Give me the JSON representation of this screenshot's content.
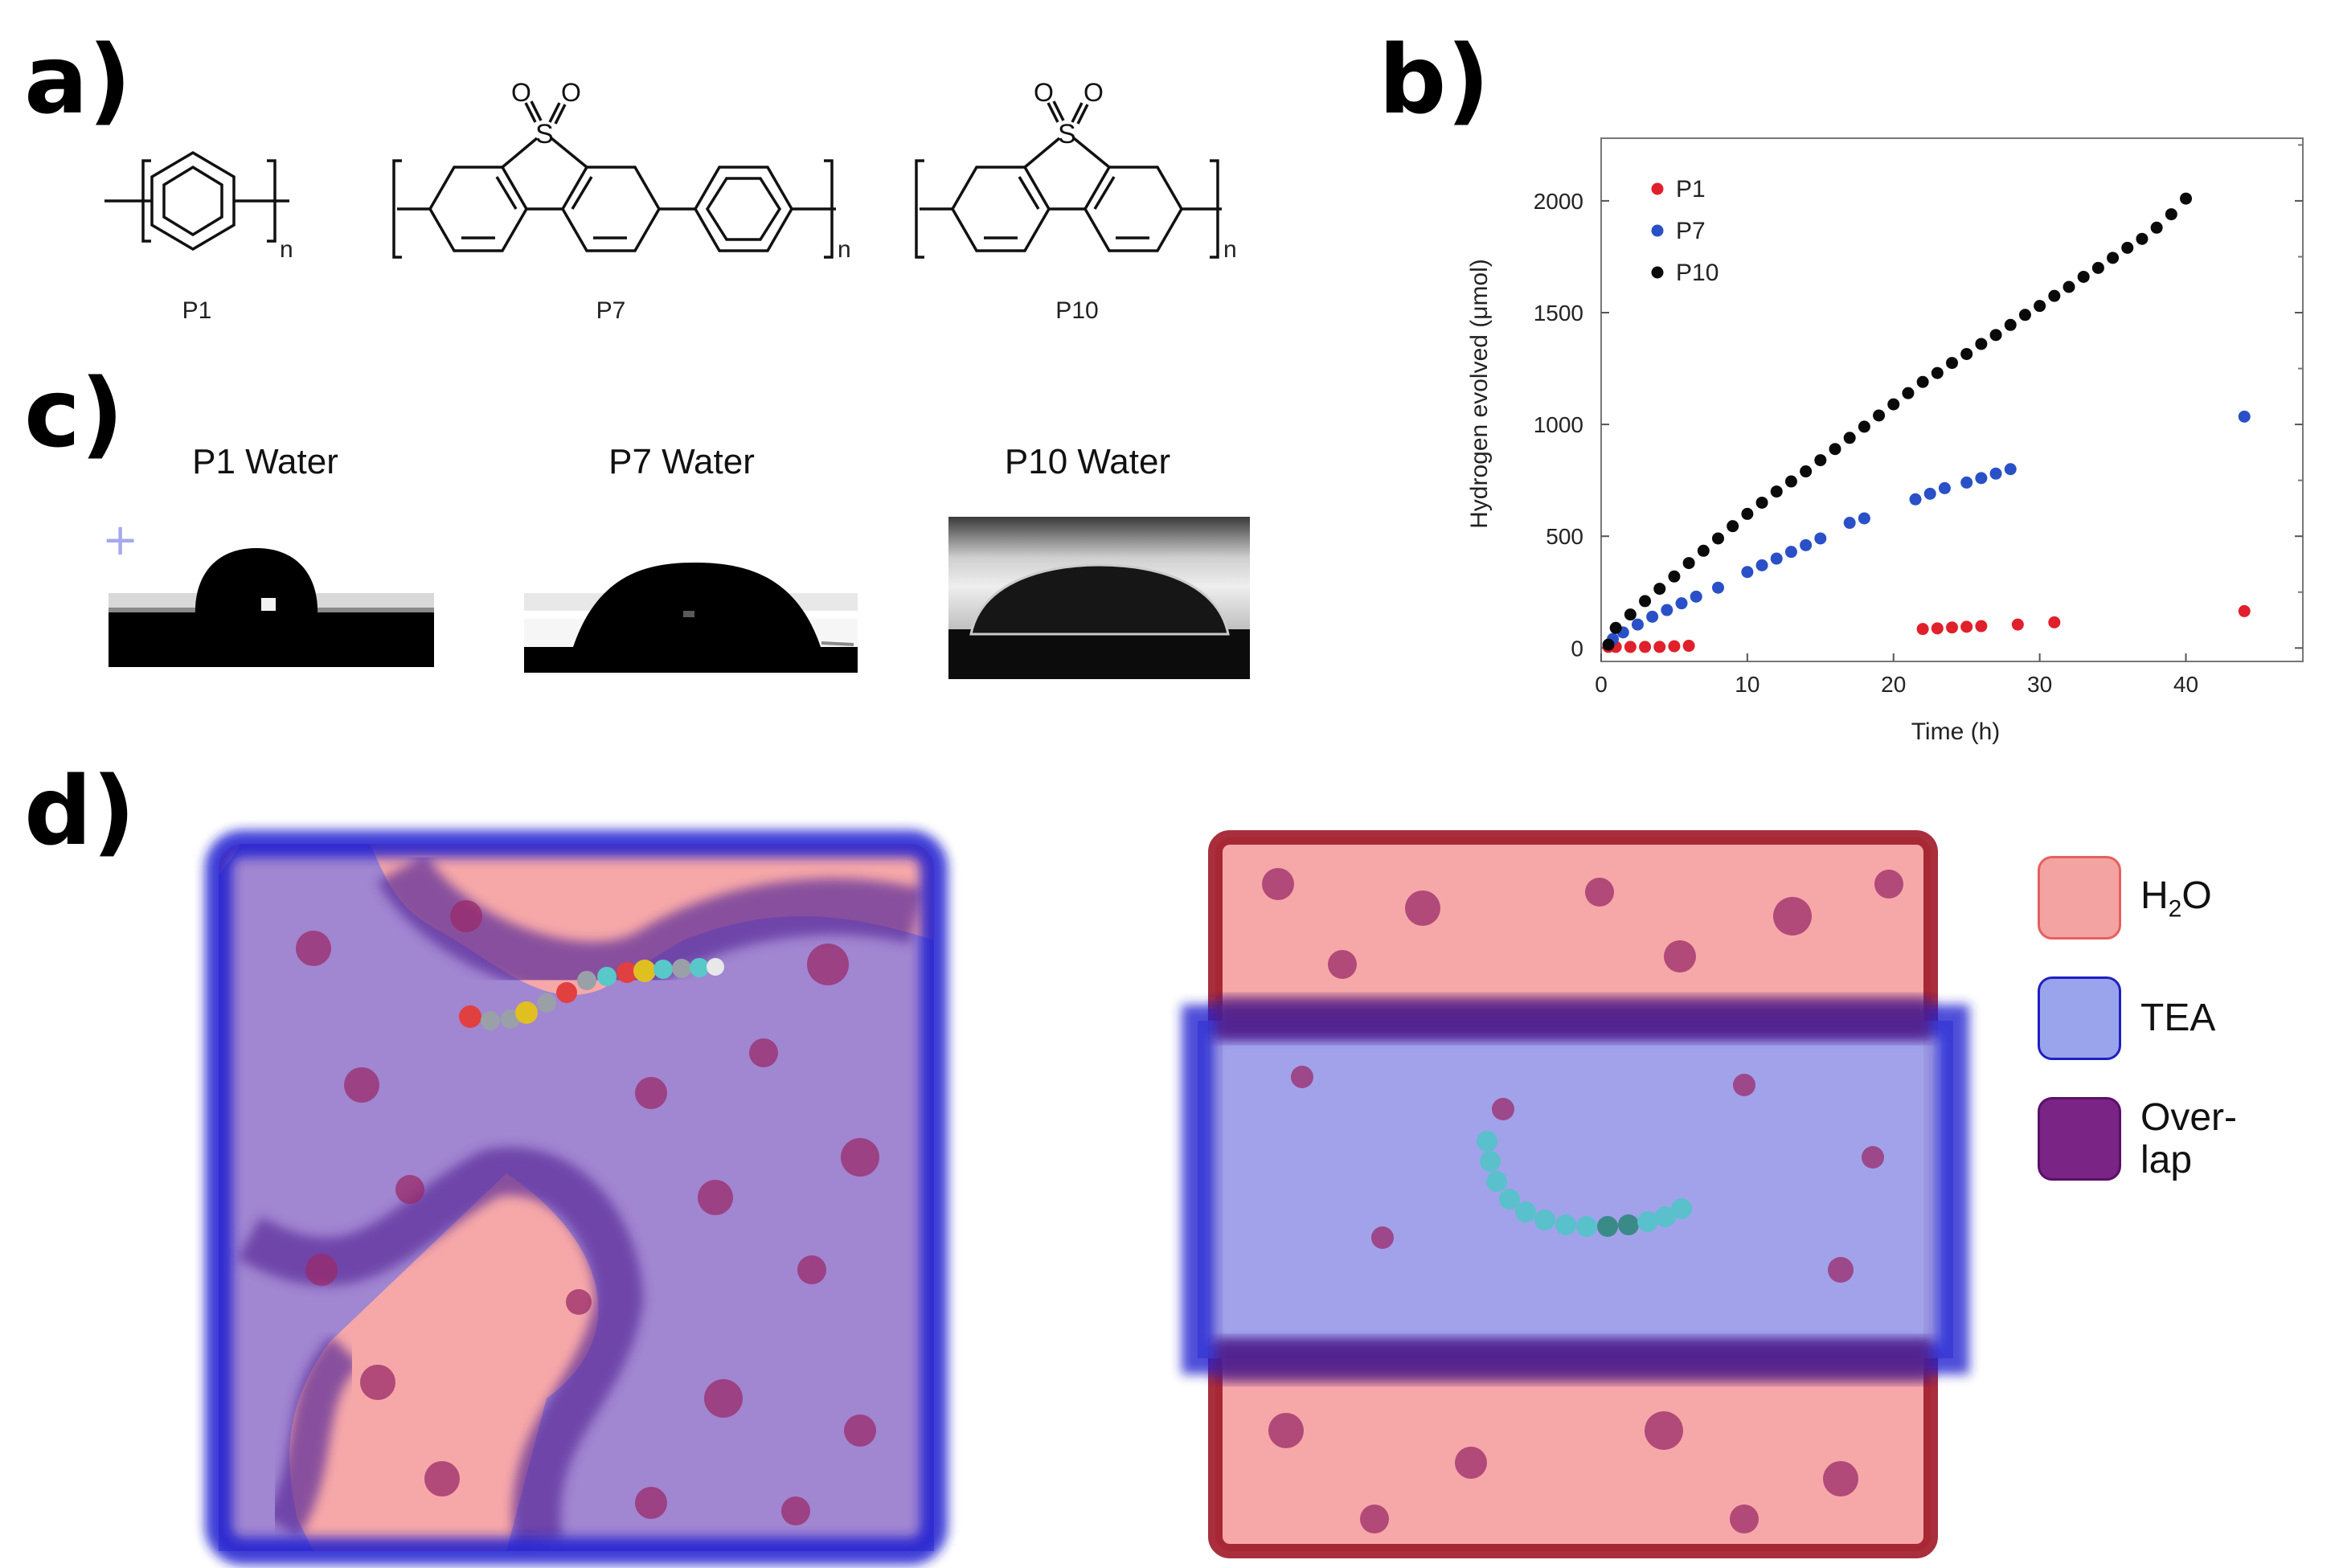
{
  "panel_labels": {
    "a": "a)",
    "b": "b)",
    "c": "c)",
    "d": "d)"
  },
  "structures": {
    "items": [
      {
        "label": "P1",
        "subscript": "n"
      },
      {
        "label": "P7",
        "subscript": "n"
      },
      {
        "label": "P10",
        "subscript": "n"
      }
    ],
    "atoms": {
      "sulfur": "S",
      "oxygen": "O"
    }
  },
  "contact_angles": {
    "titles": [
      "P1 Water",
      "P7 Water",
      "P10 Water"
    ]
  },
  "chart_data": {
    "type": "scatter",
    "title": "",
    "xlabel": "Time (h)",
    "ylabel": "Hydrogen evolved (μmol)",
    "xlim": [
      0,
      48
    ],
    "ylim": [
      -60,
      2280
    ],
    "xticks": [
      0,
      10,
      20,
      30,
      40
    ],
    "yticks": [
      0,
      500,
      1000,
      1500,
      2000
    ],
    "legend_position": "top-left",
    "series": [
      {
        "name": "P1",
        "color": "#e0202a",
        "x": [
          0.5,
          1,
          2,
          3,
          4,
          5,
          6,
          22,
          23,
          24,
          25,
          26,
          28.5,
          31,
          44
        ],
        "y": [
          5,
          5,
          5,
          5,
          5,
          8,
          10,
          85,
          88,
          92,
          95,
          98,
          105,
          115,
          165
        ]
      },
      {
        "name": "P7",
        "color": "#2a50c8",
        "x": [
          0.8,
          1.5,
          2.5,
          3.5,
          4.5,
          5.5,
          6.5,
          8,
          10,
          11,
          12,
          13,
          14,
          15,
          17,
          18,
          21.5,
          22.5,
          23.5,
          25,
          26,
          27,
          28,
          44
        ],
        "y": [
          40,
          70,
          105,
          140,
          170,
          200,
          230,
          270,
          340,
          370,
          400,
          430,
          460,
          490,
          560,
          580,
          665,
          690,
          715,
          740,
          760,
          780,
          800,
          1035
        ]
      },
      {
        "name": "P10",
        "color": "#0a0a0a",
        "x": [
          0.5,
          1,
          2,
          3,
          4,
          5,
          6,
          7,
          8,
          9,
          10,
          11,
          12,
          13,
          14,
          15,
          16,
          17,
          18,
          19,
          20,
          21,
          22,
          23,
          24,
          25,
          26,
          27,
          28,
          29,
          30,
          31,
          32,
          33,
          34,
          35,
          36,
          37,
          38,
          39,
          40
        ],
        "y": [
          15,
          90,
          150,
          210,
          265,
          320,
          380,
          435,
          490,
          545,
          600,
          650,
          700,
          745,
          790,
          840,
          890,
          940,
          990,
          1040,
          1090,
          1140,
          1190,
          1230,
          1275,
          1315,
          1360,
          1400,
          1445,
          1490,
          1530,
          1575,
          1615,
          1660,
          1700,
          1745,
          1790,
          1830,
          1880,
          1940,
          2010
        ]
      }
    ]
  },
  "legend_d": {
    "items": [
      {
        "label_main": "H",
        "label_sub": "2",
        "label_tail": "O",
        "color": "#f4a3a3",
        "border": "#e56060"
      },
      {
        "label_main": "TEA",
        "label_sub": "",
        "label_tail": "",
        "color": "#9aa4ec",
        "border": "#2020c0"
      },
      {
        "label_main": "Over-",
        "label_sub": "",
        "label_tail": "lap",
        "color": "#7a2486",
        "border": "#5a1068"
      }
    ]
  }
}
